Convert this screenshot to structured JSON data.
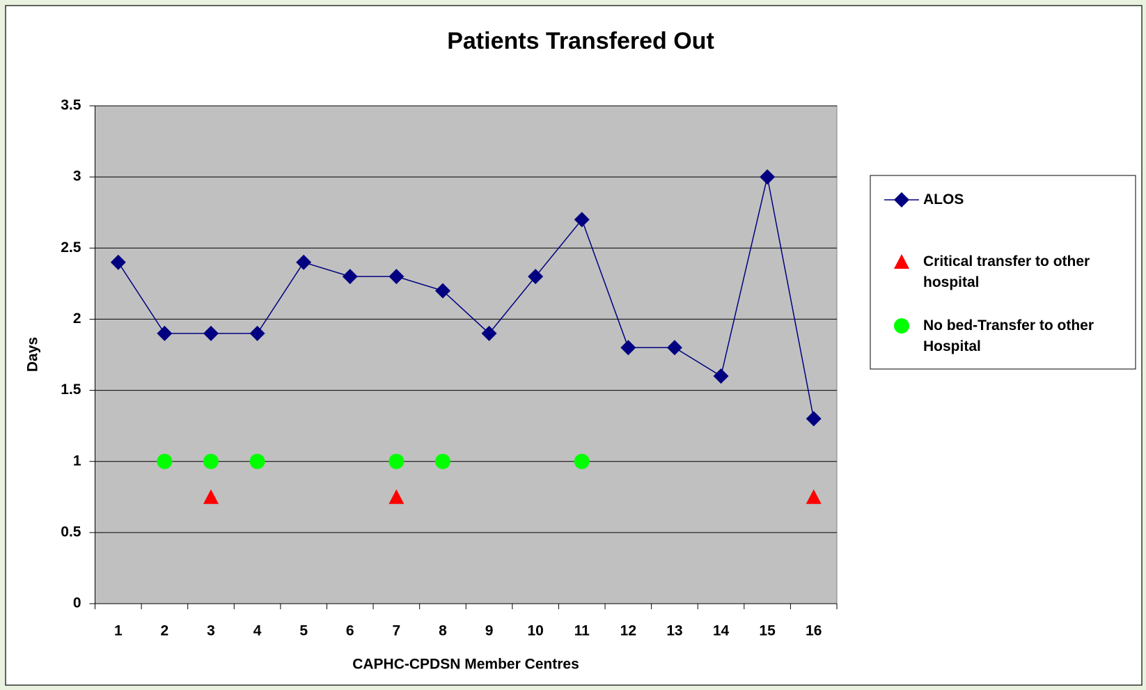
{
  "chart_data": {
    "type": "line",
    "title": "Patients Transfered Out",
    "x_label": "CAPHC-CPDSN Member Centres",
    "y_label": "Days",
    "categories": [
      "1",
      "2",
      "3",
      "4",
      "5",
      "6",
      "7",
      "8",
      "9",
      "10",
      "11",
      "12",
      "13",
      "14",
      "15",
      "16"
    ],
    "series": [
      {
        "name": "ALOS",
        "color": "#000080",
        "marker": "diamond",
        "line": true,
        "values": [
          2.4,
          1.9,
          1.9,
          1.9,
          2.4,
          2.3,
          2.3,
          2.2,
          1.9,
          2.3,
          2.7,
          1.8,
          1.8,
          1.6,
          3.0,
          1.3
        ]
      },
      {
        "name": "Critical transfer to other hospital",
        "color": "#ff0000",
        "marker": "triangle",
        "line": false,
        "values": [
          null,
          null,
          0.75,
          null,
          null,
          null,
          0.75,
          null,
          null,
          null,
          null,
          null,
          null,
          null,
          null,
          0.75
        ]
      },
      {
        "name": "No bed-Transfer to other Hospital",
        "color": "#00ff00",
        "marker": "circle",
        "line": false,
        "values": [
          null,
          1,
          1,
          1,
          null,
          null,
          1,
          1,
          null,
          null,
          1,
          null,
          null,
          null,
          null,
          null
        ]
      }
    ],
    "ylim": [
      0,
      3.5
    ],
    "yticks": [
      0,
      0.5,
      1,
      1.5,
      2,
      2.5,
      3,
      3.5
    ],
    "grid": true,
    "plot_background": "#c0c0c0",
    "legend": "right"
  }
}
